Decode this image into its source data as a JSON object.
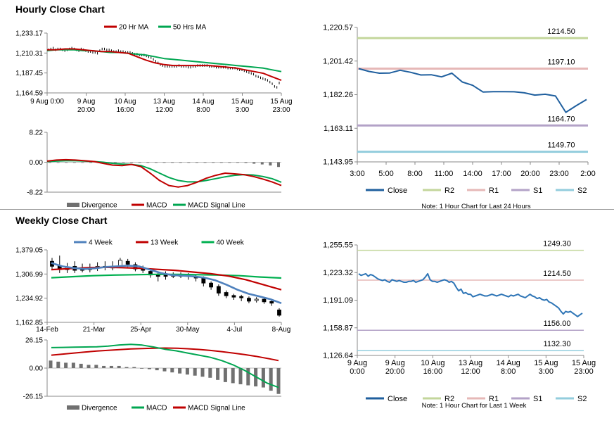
{
  "sections": {
    "hourly_title": "Hourly Close Chart",
    "weekly_title": "Weekly Close Chart"
  },
  "colors": {
    "ma20": "#c00000",
    "ma50": "#00a651",
    "close": "#1f5f9e",
    "close_light": "#2e75b6",
    "r2": "#c3d69b",
    "r1": "#e6b8b7",
    "s1": "#b3a2c7",
    "s2": "#93cddd",
    "w4": "#4f81bd",
    "w13": "#c00000",
    "w40": "#00b050",
    "macd": "#c00000",
    "signal": "#00a651",
    "divergence": "#707070",
    "axis": "#888888"
  },
  "chart_data": [
    {
      "id": "hourly-price",
      "type": "line",
      "legend": [
        "20 Hr MA",
        "50 Hrs MA"
      ],
      "y_ticks": [
        "1,233.17",
        "1,210.31",
        "1,187.45",
        "1,164.59"
      ],
      "ylim": [
        1164.59,
        1233.17
      ],
      "x_ticks": [
        [
          "9 Aug 0:00",
          ""
        ],
        [
          "9 Aug",
          "20:00"
        ],
        [
          "10 Aug",
          "16:00"
        ],
        [
          "13 Aug",
          "12:00"
        ],
        [
          "14 Aug",
          "8:00"
        ],
        [
          "15 Aug",
          "3:00"
        ],
        [
          "15 Aug",
          "23:00"
        ]
      ],
      "series": [
        {
          "name": "Close",
          "values": [
            1214,
            1215,
            1216,
            1214,
            1215,
            1215,
            1214,
            1213,
            1214,
            1215,
            1216,
            1215,
            1214,
            1213,
            1215,
            1214,
            1213,
            1212,
            1212,
            1211,
            1211,
            1210,
            1213,
            1215,
            1215,
            1214,
            1214,
            1213,
            1212,
            1212,
            1213,
            1212,
            1212,
            1211,
            1211,
            1211,
            1210,
            1209,
            1209,
            1208,
            1208,
            1208,
            1207,
            1206,
            1205,
            1203,
            1201,
            1199,
            1197,
            1196,
            1195,
            1195,
            1195,
            1195,
            1195,
            1195,
            1196,
            1195,
            1195,
            1195,
            1194,
            1194,
            1195,
            1195,
            1196,
            1196,
            1196,
            1196,
            1196,
            1195,
            1195,
            1195,
            1194,
            1194,
            1194,
            1194,
            1194,
            1193,
            1193,
            1193,
            1193,
            1192,
            1191,
            1191,
            1190,
            1189,
            1188,
            1187,
            1186,
            1184,
            1183,
            1182,
            1181,
            1180,
            1179,
            1177,
            1175,
            1172,
            1171,
            1176
          ]
        },
        {
          "name": "20 Hr MA",
          "values": [
            1214,
            1214,
            1215,
            1215,
            1214,
            1213,
            1212,
            1212,
            1211,
            1210,
            1206,
            1202,
            1199,
            1197,
            1196,
            1196,
            1196,
            1196,
            1196,
            1195,
            1194,
            1193,
            1191,
            1189,
            1187,
            1183,
            1179
          ]
        },
        {
          "name": "50 Hrs MA",
          "values": [
            1213,
            1214,
            1214,
            1214,
            1213,
            1213,
            1212,
            1211,
            1211,
            1210,
            1209,
            1208,
            1206,
            1204,
            1203,
            1202,
            1201,
            1200,
            1199,
            1198,
            1197,
            1196,
            1195,
            1194,
            1193,
            1191,
            1189
          ]
        }
      ]
    },
    {
      "id": "hourly-macd",
      "type": "line",
      "legend": [
        "Divergence",
        "MACD",
        "MACD Signal Line"
      ],
      "y_ticks": [
        "8.22",
        "0.00",
        "-8.22"
      ],
      "ylim": [
        -8.22,
        8.22
      ],
      "series": [
        {
          "name": "MACD",
          "values": [
            0.3,
            0.6,
            0.7,
            0.6,
            0.4,
            0.2,
            -0.3,
            -0.8,
            -0.9,
            -0.6,
            -1.2,
            -3,
            -5,
            -6.4,
            -6.8,
            -6.4,
            -5.5,
            -4.4,
            -3.6,
            -3,
            -3.2,
            -3.4,
            -3.9,
            -4.6,
            -5.4,
            -6.4
          ]
        },
        {
          "name": "MACD Signal Line",
          "values": [
            0.2,
            0.3,
            0.4,
            0.4,
            0.3,
            0.2,
            0,
            -0.3,
            -0.5,
            -0.6,
            -0.9,
            -1.8,
            -3,
            -4.2,
            -5,
            -5.4,
            -5.4,
            -5,
            -4.5,
            -4,
            -3.6,
            -3.4,
            -3.5,
            -3.9,
            -4.5,
            -5.5
          ]
        },
        {
          "name": "Divergence",
          "values": [
            0,
            0,
            0,
            0,
            0,
            0,
            0,
            0,
            0,
            0,
            0,
            0,
            0,
            0,
            0,
            0,
            0,
            0,
            0,
            0,
            0,
            0,
            0,
            -0.1,
            -0.2,
            -0.4,
            -0.6,
            -0.9,
            -1.3
          ]
        }
      ]
    },
    {
      "id": "hourly-24h",
      "type": "line",
      "y_ticks": [
        "1,220.57",
        "1,201.42",
        "1,182.26",
        "1,163.11",
        "1,143.95"
      ],
      "ylim": [
        1143.95,
        1220.57
      ],
      "x_ticks": [
        "3:00",
        "5:00",
        "8:00",
        "11:00",
        "14:00",
        "17:00",
        "20:00",
        "23:00",
        "2:00"
      ],
      "levels": [
        {
          "name": "R2",
          "value": 1214.5,
          "label": "1214.50"
        },
        {
          "name": "R1",
          "value": 1197.1,
          "label": "1197.10"
        },
        {
          "name": "S1",
          "value": 1164.7,
          "label": "1164.70"
        },
        {
          "name": "S2",
          "value": 1149.7,
          "label": "1149.70"
        }
      ],
      "series": [
        {
          "name": "Close",
          "values": [
            1197.1,
            1195.5,
            1194.5,
            1194.6,
            1196.2,
            1195,
            1193.5,
            1193.6,
            1192.4,
            1194.5,
            1189.5,
            1187.6,
            1183.8,
            1184,
            1184,
            1183.9,
            1183.3,
            1182,
            1182.5,
            1181.5,
            1172.2,
            1176,
            1179.5
          ]
        }
      ],
      "legend": [
        "Close",
        "R2",
        "R1",
        "S1",
        "S2"
      ],
      "note": "Note: 1 Hour Chart for Last 24 Hours"
    },
    {
      "id": "weekly-price",
      "type": "line",
      "legend": [
        "4 Week",
        "13 Week",
        "40 Week"
      ],
      "y_ticks": [
        "1,379.05",
        "1,306.99",
        "1,234.92",
        "1,162.85"
      ],
      "ylim": [
        1162.85,
        1379.05
      ],
      "x_ticks": [
        "14-Feb",
        "21-Mar",
        "25-Apr",
        "30-May",
        "4-Jul",
        "8-Aug"
      ],
      "candles": [
        {
          "o": 1345,
          "c": 1330,
          "h": 1355,
          "l": 1320
        },
        {
          "o": 1332,
          "c": 1320,
          "h": 1362,
          "l": 1310
        },
        {
          "o": 1320,
          "c": 1328,
          "h": 1340,
          "l": 1310
        },
        {
          "o": 1330,
          "c": 1318,
          "h": 1345,
          "l": 1310
        },
        {
          "o": 1325,
          "c": 1318,
          "h": 1338,
          "l": 1312
        },
        {
          "o": 1320,
          "c": 1325,
          "h": 1338,
          "l": 1312
        },
        {
          "o": 1325,
          "c": 1330,
          "h": 1342,
          "l": 1316
        },
        {
          "o": 1330,
          "c": 1326,
          "h": 1345,
          "l": 1318
        },
        {
          "o": 1325,
          "c": 1330,
          "h": 1345,
          "l": 1318
        },
        {
          "o": 1330,
          "c": 1348,
          "h": 1355,
          "l": 1326
        },
        {
          "o": 1345,
          "c": 1336,
          "h": 1352,
          "l": 1328
        },
        {
          "o": 1335,
          "c": 1322,
          "h": 1342,
          "l": 1315
        },
        {
          "o": 1322,
          "c": 1318,
          "h": 1332,
          "l": 1310
        },
        {
          "o": 1315,
          "c": 1304,
          "h": 1320,
          "l": 1296
        },
        {
          "o": 1304,
          "c": 1300,
          "h": 1310,
          "l": 1285
        },
        {
          "o": 1305,
          "c": 1300,
          "h": 1315,
          "l": 1290
        },
        {
          "o": 1300,
          "c": 1302,
          "h": 1312,
          "l": 1295
        },
        {
          "o": 1300,
          "c": 1305,
          "h": 1312,
          "l": 1295
        },
        {
          "o": 1304,
          "c": 1300,
          "h": 1310,
          "l": 1290
        },
        {
          "o": 1300,
          "c": 1295,
          "h": 1306,
          "l": 1285
        },
        {
          "o": 1294,
          "c": 1280,
          "h": 1300,
          "l": 1270
        },
        {
          "o": 1280,
          "c": 1268,
          "h": 1285,
          "l": 1260
        },
        {
          "o": 1270,
          "c": 1250,
          "h": 1276,
          "l": 1242
        },
        {
          "o": 1252,
          "c": 1242,
          "h": 1258,
          "l": 1235
        },
        {
          "o": 1243,
          "c": 1238,
          "h": 1248,
          "l": 1230
        },
        {
          "o": 1240,
          "c": 1236,
          "h": 1245,
          "l": 1226
        },
        {
          "o": 1235,
          "c": 1226,
          "h": 1240,
          "l": 1220
        },
        {
          "o": 1228,
          "c": 1232,
          "h": 1238,
          "l": 1222
        },
        {
          "o": 1232,
          "c": 1224,
          "h": 1236,
          "l": 1218
        },
        {
          "o": 1225,
          "c": 1220,
          "h": 1228,
          "l": 1212
        },
        {
          "o": 1200,
          "c": 1184,
          "h": 1205,
          "l": 1180
        }
      ],
      "series": [
        {
          "name": "4 Week",
          "values": [
            1340,
            1330,
            1325,
            1322,
            1324,
            1328,
            1330,
            1332,
            1330,
            1320,
            1310,
            1304,
            1302,
            1300,
            1296,
            1288,
            1275,
            1260,
            1248,
            1240,
            1232,
            1220
          ]
        },
        {
          "name": "13 Week",
          "values": [
            1320,
            1323,
            1326,
            1327,
            1326,
            1324,
            1321,
            1318,
            1313,
            1308,
            1301,
            1290,
            1275,
            1260
          ]
        },
        {
          "name": "40 Week",
          "values": [
            1296,
            1299,
            1302,
            1304,
            1305,
            1306,
            1306,
            1305,
            1304,
            1302,
            1298,
            1295
          ]
        }
      ]
    },
    {
      "id": "weekly-macd",
      "type": "line",
      "legend": [
        "Divergence",
        "MACD",
        "MACD Signal Line"
      ],
      "y_ticks": [
        "26.15",
        "0.00",
        "-26.15"
      ],
      "ylim": [
        -26.15,
        26.15
      ],
      "series": [
        {
          "name": "MACD",
          "values": [
            19,
            19.2,
            19.5,
            19.6,
            19.8,
            20.4,
            21.5,
            22,
            21.4,
            19.6,
            17.5,
            16,
            14,
            12,
            10,
            7,
            3,
            -2,
            -8,
            -14,
            -18
          ]
        },
        {
          "name": "MACD Signal Line",
          "values": [
            12,
            13,
            14,
            15,
            15.8,
            16.5,
            17.2,
            17.8,
            18.2,
            18.5,
            18.6,
            18.5,
            18,
            17.3,
            16.4,
            15.3,
            14,
            12.6,
            11,
            9,
            7
          ]
        },
        {
          "name": "Divergence",
          "values": [
            7,
            6,
            5,
            5,
            4,
            3,
            3,
            2,
            2,
            2,
            1,
            1,
            0,
            -1,
            -2,
            -3,
            -4,
            -5,
            -6,
            -7,
            -8,
            -9,
            -11,
            -13,
            -14,
            -15,
            -16,
            -17,
            -18,
            -21,
            -24
          ]
        }
      ]
    },
    {
      "id": "weekly-1w",
      "type": "line",
      "y_ticks": [
        "1,255.55",
        "1,223.32",
        "1,191.09",
        "1,158.87",
        "1,126.64"
      ],
      "ylim": [
        1126.64,
        1255.55
      ],
      "x_ticks": [
        [
          "9 Aug",
          "0:00"
        ],
        [
          "9 Aug",
          "20:00"
        ],
        [
          "10 Aug",
          "16:00"
        ],
        [
          "13 Aug",
          "12:00"
        ],
        [
          "14 Aug",
          "8:00"
        ],
        [
          "15 Aug",
          "3:00"
        ],
        [
          "15 Aug",
          "23:00"
        ]
      ],
      "levels": [
        {
          "name": "R2",
          "value": 1249.3,
          "label": "1249.30"
        },
        {
          "name": "R1",
          "value": 1214.5,
          "label": "1214.50"
        },
        {
          "name": "S1",
          "value": 1156.0,
          "label": "1156.00"
        },
        {
          "name": "S2",
          "value": 1132.3,
          "label": "1132.30"
        }
      ],
      "series": [
        {
          "name": "Close",
          "values": [
            1222,
            1220,
            1221,
            1222,
            1219,
            1221,
            1220,
            1218,
            1216,
            1215,
            1214,
            1215,
            1213,
            1212,
            1215,
            1214,
            1213,
            1214,
            1213,
            1212,
            1212,
            1213,
            1213,
            1214,
            1212,
            1213,
            1214,
            1215,
            1218,
            1222,
            1215,
            1213,
            1213,
            1212,
            1213,
            1214,
            1215,
            1214,
            1212,
            1213,
            1211,
            1206,
            1202,
            1204,
            1199,
            1200,
            1198,
            1198,
            1195,
            1196,
            1197,
            1198,
            1197,
            1196,
            1196,
            1197,
            1198,
            1197,
            1196,
            1197,
            1198,
            1197,
            1196,
            1195,
            1197,
            1196,
            1197,
            1198,
            1196,
            1195,
            1194,
            1196,
            1198,
            1196,
            1195,
            1193,
            1194,
            1192,
            1191,
            1192,
            1189,
            1188,
            1186,
            1184,
            1182,
            1178,
            1175,
            1178,
            1177,
            1178,
            1176,
            1174,
            1172,
            1174,
            1176
          ]
        }
      ],
      "legend": [
        "Close",
        "R2",
        "R1",
        "S1",
        "S2"
      ],
      "note": "Note: 1 Hour Chart for Last 1 Week"
    }
  ]
}
